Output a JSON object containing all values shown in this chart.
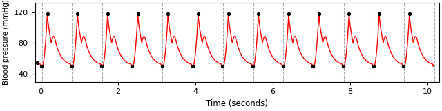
{
  "xlabel": "Time (seconds)",
  "ylabel": "Blood pressure (mmHg)",
  "xlim": [
    -0.15,
    10.3
  ],
  "ylim": [
    30,
    132
  ],
  "yticks": [
    40,
    80,
    120
  ],
  "xticks": [
    0,
    2,
    4,
    6,
    8,
    10
  ],
  "line_color": "red",
  "dot_color": "black",
  "dashed_line_color": "#999999",
  "background_color": "white",
  "period": 0.78,
  "systolic_bp": 118,
  "diastolic_bp": 50,
  "num_cycles": 13
}
